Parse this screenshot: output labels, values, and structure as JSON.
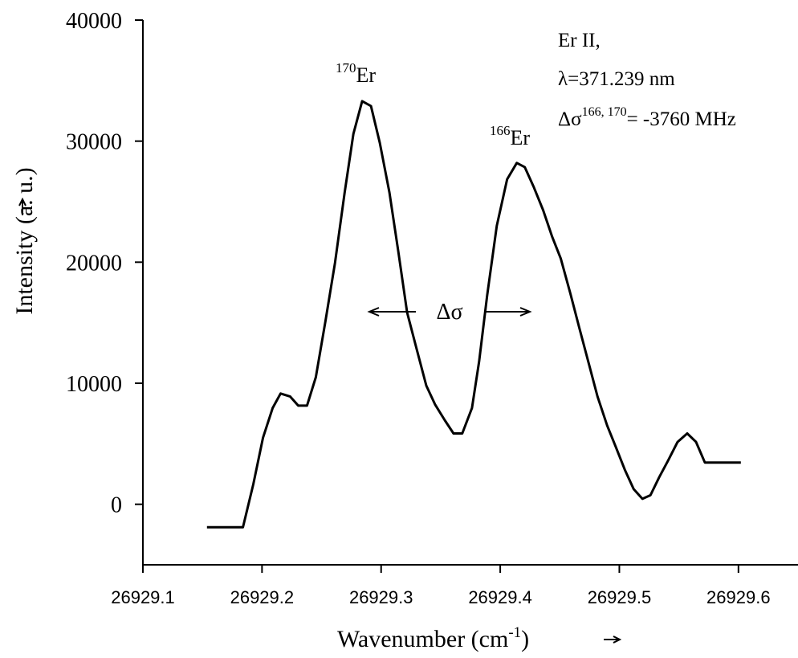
{
  "chart_data": {
    "type": "line",
    "x_label": {
      "text": "Wavenumber (cm",
      "sup": "-1",
      "after": ")"
    },
    "y_label": "Intensity (a. u.)",
    "annotations": [
      {
        "text": "Er",
        "sup": "170"
      },
      {
        "text": "Er",
        "sup": "166"
      }
    ],
    "info": {
      "line1": "Er II,",
      "line2": "λ=371.239 nm",
      "line3": {
        "text": "Δσ",
        "sup": "166, 170",
        "after": "= -3760 MHz"
      }
    },
    "arrow_label": "Δσ",
    "xlim": [
      26929.1,
      26929.65
    ],
    "ylim": [
      -5000,
      40000
    ],
    "xticks": [
      26929.1,
      26929.2,
      26929.3,
      26929.4,
      26929.5,
      26929.6
    ],
    "yticks": [
      0,
      10000,
      20000,
      30000,
      40000
    ],
    "color": "#000000",
    "x": [
      26929.1538,
      26929.184,
      26929.1927,
      26929.2008,
      26929.2089,
      26929.2156,
      26929.2237,
      26929.2304,
      26929.2378,
      26929.2452,
      26929.2532,
      26929.2613,
      26929.2694,
      26929.2767,
      26929.2841,
      26929.2915,
      26929.2989,
      26929.307,
      26929.3144,
      26929.3218,
      26929.3298,
      26929.3379,
      26929.3453,
      26929.3534,
      26929.3608,
      26929.3681,
      26929.3763,
      26929.3823,
      26929.389,
      26929.3971,
      26929.4058,
      26929.4139,
      26929.4206,
      26929.428,
      26929.436,
      26929.4434,
      26929.4508,
      26929.4589,
      26929.4663,
      26929.4744,
      26929.4817,
      26929.4898,
      26929.4972,
      26929.5046,
      26929.512,
      26929.5194,
      26929.5261,
      26929.5335,
      26929.5409,
      26929.5489,
      26929.557,
      26929.5644,
      26929.5718,
      26929.5792,
      26929.602
    ],
    "values": [
      -1900,
      -1900,
      1650,
      5500,
      7950,
      9150,
      8900,
      8150,
      8150,
      10500,
      15100,
      19950,
      25750,
      30600,
      33300,
      32900,
      29850,
      25750,
      20900,
      15850,
      12850,
      9800,
      8250,
      6950,
      5850,
      5850,
      7950,
      11800,
      17250,
      23000,
      26850,
      28200,
      27850,
      26250,
      24300,
      22150,
      20300,
      17400,
      14600,
      11600,
      8900,
      6500,
      4700,
      2850,
      1250,
      450,
      750,
      2250,
      3600,
      5150,
      5850,
      5150,
      3450,
      3450,
      3450
    ]
  }
}
